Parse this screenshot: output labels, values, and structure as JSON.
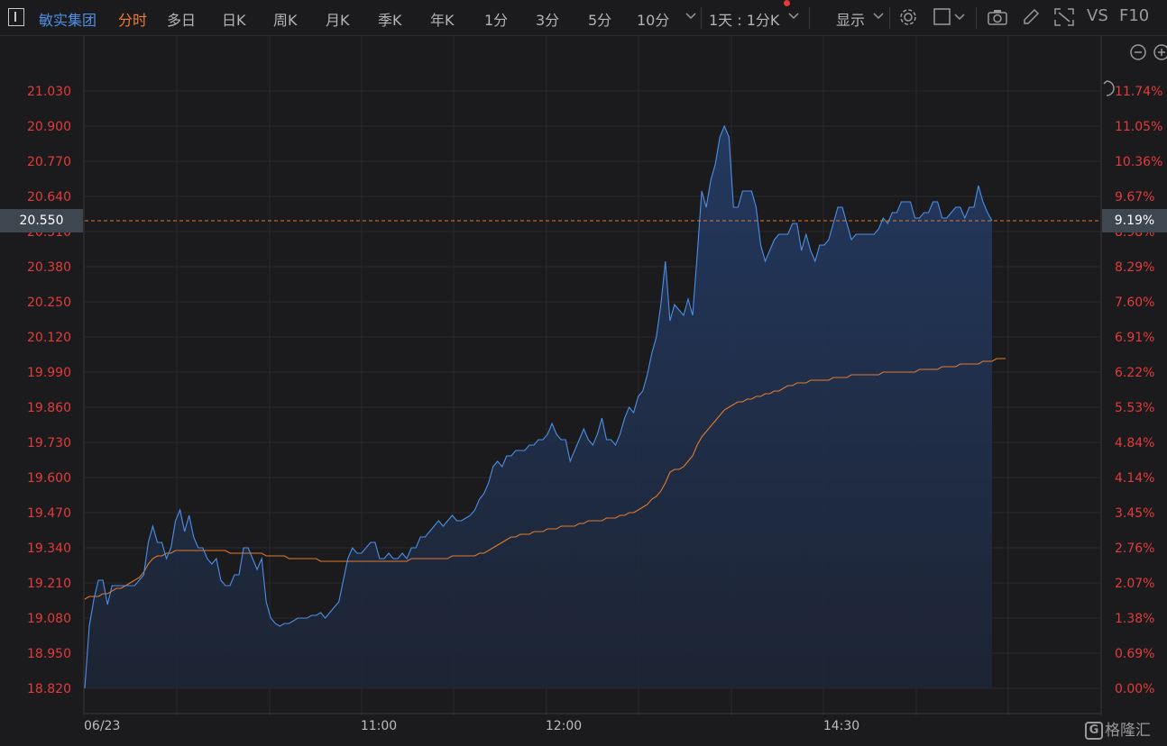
{
  "toolbar": {
    "stock_name": "敏实集团",
    "periods": [
      "分时",
      "多日",
      "日K",
      "周K",
      "月K",
      "季K",
      "年K",
      "1分",
      "3分",
      "5分",
      "10分"
    ],
    "active_period": "分时",
    "combo_label": "1天 : 1分K",
    "display_label": "显示",
    "vs_label": "VS",
    "f10_label": "F10"
  },
  "chart_data": {
    "type": "line",
    "x_labels": [
      "06/23",
      "11:00",
      "12:00",
      "14:30"
    ],
    "y_ticks": [
      "21.030",
      "20.900",
      "20.770",
      "20.640",
      "20.510",
      "20.380",
      "20.250",
      "20.120",
      "19.990",
      "19.860",
      "19.730",
      "19.600",
      "19.470",
      "19.340",
      "19.210",
      "19.080",
      "18.950",
      "18.820"
    ],
    "pct_ticks": [
      "11.74%",
      "11.05%",
      "10.36%",
      "9.67%",
      "8.98%",
      "8.29%",
      "7.60%",
      "6.91%",
      "6.22%",
      "5.53%",
      "4.84%",
      "4.14%",
      "3.45%",
      "2.76%",
      "2.07%",
      "1.38%",
      "0.69%",
      "0.00%"
    ],
    "ylim": [
      18.82,
      21.03
    ],
    "current_price": "20.550",
    "current_pct": "9.19%",
    "price_color": "#4d8fe6",
    "avg_color": "#e07a2e",
    "series": [
      {
        "values": [
          18.82,
          19.05,
          19.15,
          19.22,
          19.22,
          19.13,
          19.2,
          19.2,
          19.2,
          19.2,
          19.2,
          19.2,
          19.22,
          19.24,
          19.36,
          19.42,
          19.36,
          19.36,
          19.3,
          19.34,
          19.44,
          19.48,
          19.4,
          19.46,
          19.38,
          19.34,
          19.34,
          19.3,
          19.28,
          19.3,
          19.22,
          19.2,
          19.2,
          19.24,
          19.24,
          19.34,
          19.34,
          19.3,
          19.26,
          19.3,
          19.14,
          19.08,
          19.06,
          19.05,
          19.06,
          19.06,
          19.07,
          19.08,
          19.08,
          19.08,
          19.09,
          19.09,
          19.1,
          19.08,
          19.1,
          19.12,
          19.14,
          19.22,
          19.3,
          19.34,
          19.32,
          19.32,
          19.34,
          19.36,
          19.36,
          19.3,
          19.3,
          19.32,
          19.3,
          19.3,
          19.32,
          19.3,
          19.34,
          19.34,
          19.38,
          19.38,
          19.4,
          19.42,
          19.44,
          19.42,
          19.44,
          19.46,
          19.44,
          19.44,
          19.45,
          19.46,
          19.48,
          19.52,
          19.54,
          19.58,
          19.64,
          19.66,
          19.64,
          19.68,
          19.68,
          19.7,
          19.7,
          19.7,
          19.72,
          19.72,
          19.74,
          19.74,
          19.76,
          19.8,
          19.76,
          19.74,
          19.74,
          19.66,
          19.7,
          19.74,
          19.78,
          19.74,
          19.72,
          19.76,
          19.82,
          19.74,
          19.74,
          19.72,
          19.76,
          19.82,
          19.86,
          19.84,
          19.9,
          19.92,
          19.98,
          20.06,
          20.12,
          20.24,
          20.4,
          20.18,
          20.24,
          20.22,
          20.2,
          20.26,
          20.2,
          20.42,
          20.66,
          20.6,
          20.7,
          20.76,
          20.86,
          20.9,
          20.86,
          20.6,
          20.6,
          20.66,
          20.66,
          20.66,
          20.6,
          20.46,
          20.4,
          20.44,
          20.48,
          20.5,
          20.5,
          20.5,
          20.54,
          20.54,
          20.44,
          20.5,
          20.44,
          20.4,
          20.46,
          20.46,
          20.48,
          20.54,
          20.6,
          20.6,
          20.54,
          20.48,
          20.5,
          20.5,
          20.5,
          20.5,
          20.5,
          20.52,
          20.56,
          20.54,
          20.58,
          20.58,
          20.62,
          20.62,
          20.62,
          20.56,
          20.56,
          20.58,
          20.58,
          20.62,
          20.62,
          20.56,
          20.56,
          20.58,
          20.6,
          20.6,
          20.56,
          20.6,
          20.6,
          20.68,
          20.62,
          20.58,
          20.55
        ]
      },
      {
        "values": [
          19.15,
          19.16,
          19.16,
          19.16,
          19.17,
          19.17,
          19.18,
          19.19,
          19.19,
          19.2,
          19.21,
          19.22,
          19.23,
          19.25,
          19.28,
          19.3,
          19.31,
          19.31,
          19.32,
          19.32,
          19.33,
          19.33,
          19.33,
          19.33,
          19.33,
          19.33,
          19.33,
          19.33,
          19.33,
          19.33,
          19.33,
          19.33,
          19.32,
          19.32,
          19.32,
          19.32,
          19.32,
          19.32,
          19.32,
          19.32,
          19.31,
          19.31,
          19.31,
          19.31,
          19.31,
          19.3,
          19.3,
          19.3,
          19.3,
          19.3,
          19.3,
          19.3,
          19.29,
          19.29,
          19.29,
          19.29,
          19.29,
          19.29,
          19.29,
          19.29,
          19.29,
          19.29,
          19.29,
          19.29,
          19.29,
          19.29,
          19.29,
          19.29,
          19.29,
          19.29,
          19.29,
          19.29,
          19.3,
          19.3,
          19.3,
          19.3,
          19.3,
          19.3,
          19.3,
          19.3,
          19.3,
          19.31,
          19.31,
          19.31,
          19.31,
          19.31,
          19.31,
          19.32,
          19.32,
          19.33,
          19.34,
          19.35,
          19.36,
          19.37,
          19.38,
          19.38,
          19.39,
          19.39,
          19.39,
          19.4,
          19.4,
          19.4,
          19.41,
          19.41,
          19.41,
          19.42,
          19.42,
          19.42,
          19.42,
          19.43,
          19.43,
          19.44,
          19.44,
          19.44,
          19.44,
          19.45,
          19.45,
          19.45,
          19.46,
          19.46,
          19.47,
          19.47,
          19.48,
          19.49,
          19.5,
          19.52,
          19.53,
          19.55,
          19.58,
          19.62,
          19.63,
          19.63,
          19.64,
          19.66,
          19.68,
          19.72,
          19.75,
          19.77,
          19.79,
          19.81,
          19.83,
          19.85,
          19.86,
          19.87,
          19.88,
          19.88,
          19.89,
          19.89,
          19.9,
          19.9,
          19.91,
          19.91,
          19.92,
          19.92,
          19.93,
          19.94,
          19.94,
          19.95,
          19.95,
          19.95,
          19.96,
          19.96,
          19.96,
          19.96,
          19.96,
          19.97,
          19.97,
          19.97,
          19.97,
          19.98,
          19.98,
          19.98,
          19.98,
          19.98,
          19.98,
          19.98,
          19.99,
          19.99,
          19.99,
          19.99,
          19.99,
          19.99,
          19.99,
          19.99,
          20,
          20,
          20,
          20,
          20,
          20.01,
          20.01,
          20.01,
          20.01,
          20.02,
          20.02,
          20.02,
          20.02,
          20.02,
          20.03,
          20.03,
          20.03,
          20.04,
          20.04,
          20.04
        ]
      }
    ]
  },
  "watermark": "格隆汇"
}
